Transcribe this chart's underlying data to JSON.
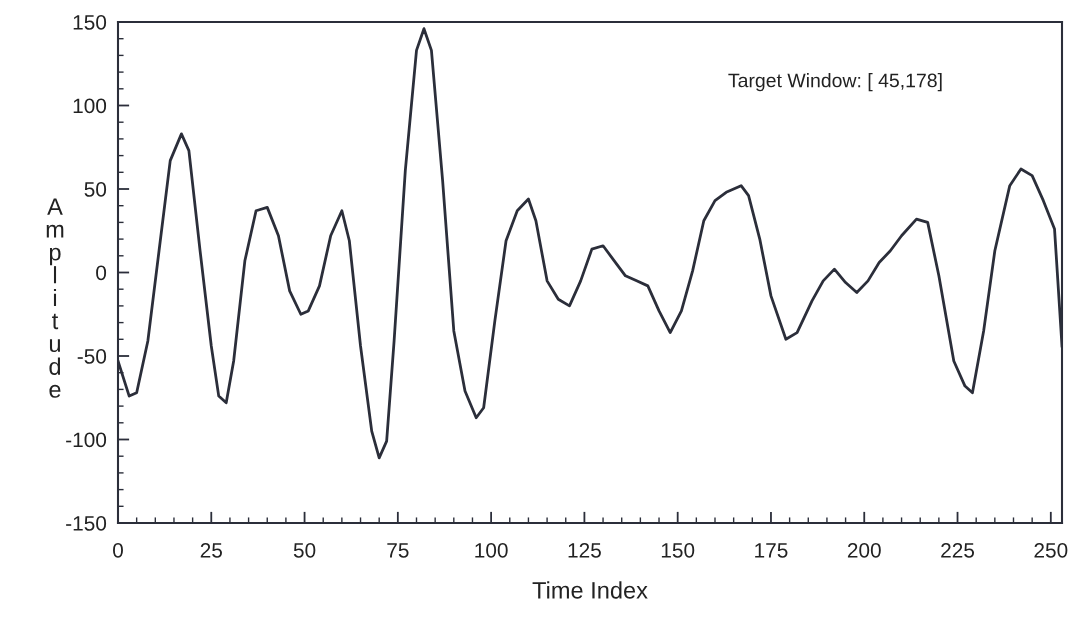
{
  "chart_data": {
    "type": "line",
    "xlabel": "Time Index",
    "ylabel": "Amplitude",
    "annotations": [
      "Target Window: [ 45,178]"
    ],
    "xlim": [
      0,
      253
    ],
    "xticks": [
      0,
      25,
      50,
      75,
      100,
      125,
      150,
      175,
      200,
      225,
      250
    ],
    "ylim": [
      -150,
      150
    ],
    "yticks": [
      -150,
      -100,
      -50,
      0,
      50,
      100,
      150
    ],
    "grid": false,
    "legend": false,
    "marker": "none",
    "line_style": "solid",
    "series": [
      {
        "color": "#2b2e3a",
        "x": [
          0,
          3,
          5,
          8,
          11,
          14,
          17,
          19,
          22,
          25,
          27,
          29,
          31,
          34,
          37,
          40,
          43,
          46,
          49,
          51,
          54,
          57,
          60,
          62,
          65,
          68,
          70,
          72,
          74,
          77,
          80,
          82,
          84,
          87,
          90,
          93,
          96,
          98,
          101,
          104,
          107,
          110,
          112,
          115,
          118,
          121,
          124,
          127,
          130,
          133,
          136,
          139,
          142,
          145,
          148,
          151,
          154,
          157,
          160,
          163,
          167,
          169,
          172,
          175,
          179,
          182,
          186,
          189,
          192,
          195,
          198,
          201,
          204,
          207,
          210,
          214,
          217,
          220,
          224,
          227,
          229,
          232,
          235,
          239,
          242,
          245,
          248,
          251,
          253
        ],
        "values": [
          -53,
          -74,
          -72,
          -41,
          13,
          67,
          83,
          73,
          13,
          -44,
          -74,
          -78,
          -53,
          7,
          37,
          39,
          22,
          -11,
          -25,
          -23,
          -8,
          22,
          37,
          19,
          -44,
          -95,
          -111,
          -101,
          -41,
          61,
          133,
          146,
          133,
          55,
          -35,
          -71,
          -87,
          -81,
          -29,
          19,
          37,
          44,
          31,
          -5,
          -16,
          -20,
          -5,
          14,
          16,
          7,
          -2,
          -5,
          -8,
          -23,
          -36,
          -23,
          1,
          31,
          43,
          48,
          52,
          46,
          20,
          -14,
          -40,
          -36,
          -17,
          -5,
          2,
          -6,
          -12,
          -5,
          6,
          13,
          22,
          32,
          30,
          -2,
          -53,
          -68,
          -72,
          -35,
          13,
          52,
          62,
          58,
          43,
          26,
          -44
        ]
      }
    ]
  }
}
